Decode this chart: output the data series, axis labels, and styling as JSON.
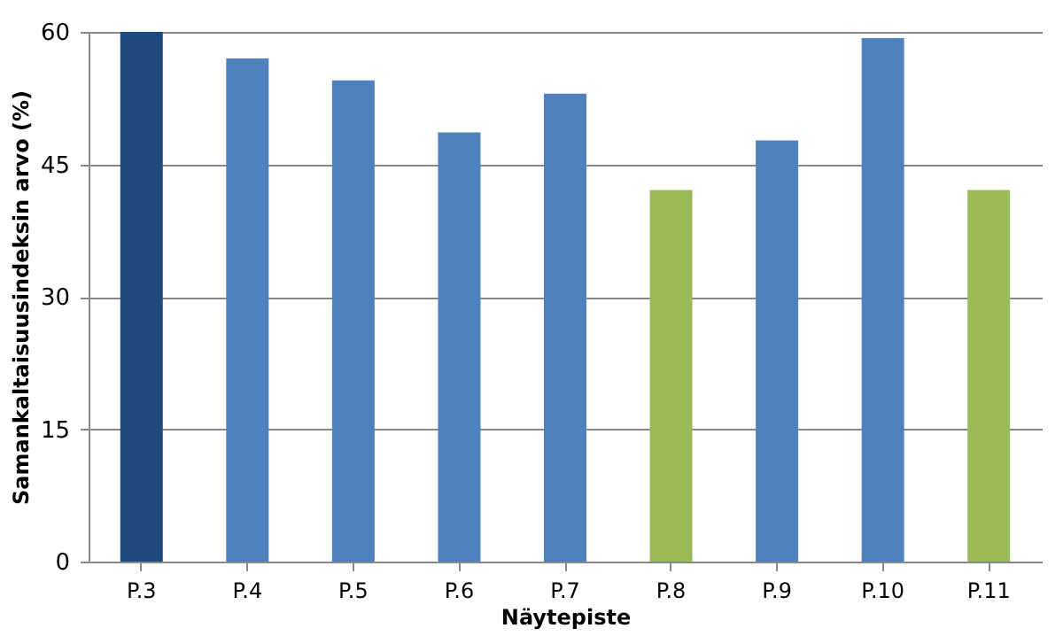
{
  "chart_data": {
    "type": "bar",
    "xlabel": "Näytepiste",
    "ylabel": "Samankaltaisuusindeksin arvo (%)",
    "categories": [
      "P.3",
      "P.4",
      "P.5",
      "P.6",
      "P.7",
      "P.8",
      "P.9",
      "P.10",
      "P.11"
    ],
    "values": [
      60,
      57.0,
      54.5,
      48.6,
      53.0,
      42.1,
      47.7,
      59.3,
      42.1
    ],
    "colors": [
      "#1f497d",
      "#4f81bd",
      "#4f81bd",
      "#4f81bd",
      "#4f81bd",
      "#9bbb59",
      "#4f81bd",
      "#4f81bd",
      "#9bbb59"
    ],
    "ylim": [
      0,
      60
    ],
    "yticks": [
      0,
      15,
      30,
      45,
      60
    ],
    "grid": "y"
  }
}
